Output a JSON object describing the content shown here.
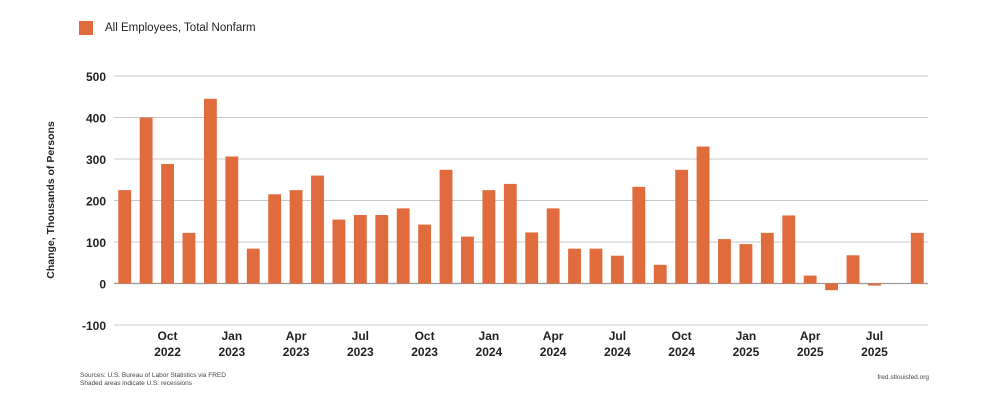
{
  "legend": {
    "label": "All Employees, Total Nonfarm",
    "color": "#e06b3c"
  },
  "footer": {
    "sources": "Sources: U.S. Bureau of Labor Statistics via FRED",
    "recessions": "Shaded areas indicate U.S. recessions",
    "site": "fred.stlouisfed.org"
  },
  "chart_data": {
    "type": "bar",
    "ylabel": "Change, Thousands of Persons",
    "ylim": [
      -100,
      500
    ],
    "yticks": [
      -100,
      0,
      100,
      200,
      300,
      400,
      500
    ],
    "grid": true,
    "legend_position": "top-left",
    "bar_color": "#e06b3c",
    "series": [
      {
        "name": "All Employees, Total Nonfarm",
        "x": [
          "2022-08",
          "2022-09",
          "2022-10",
          "2022-11",
          "2022-12",
          "2023-01",
          "2023-02",
          "2023-03",
          "2023-04",
          "2023-05",
          "2023-06",
          "2023-07",
          "2023-08",
          "2023-09",
          "2023-10",
          "2023-11",
          "2023-12",
          "2024-01",
          "2024-02",
          "2024-03",
          "2024-04",
          "2024-05",
          "2024-06",
          "2024-07",
          "2024-08",
          "2024-09",
          "2024-10",
          "2024-11",
          "2024-12",
          "2025-01",
          "2025-02",
          "2025-03",
          "2025-04",
          "2025-05",
          "2025-06",
          "2025-07",
          "2025-08",
          "2025-09"
        ],
        "values": [
          225,
          400,
          288,
          122,
          445,
          306,
          84,
          215,
          225,
          260,
          154,
          165,
          165,
          181,
          142,
          274,
          113,
          225,
          240,
          123,
          181,
          84,
          84,
          67,
          233,
          45,
          274,
          330,
          107,
          95,
          122,
          164,
          19,
          -16,
          68,
          -5,
          0,
          122
        ]
      }
    ],
    "xticks": [
      {
        "month": "Oct",
        "year": "2022",
        "index": 2
      },
      {
        "month": "Jan",
        "year": "2023",
        "index": 5
      },
      {
        "month": "Apr",
        "year": "2023",
        "index": 8
      },
      {
        "month": "Jul",
        "year": "2023",
        "index": 11
      },
      {
        "month": "Oct",
        "year": "2023",
        "index": 14
      },
      {
        "month": "Jan",
        "year": "2024",
        "index": 17
      },
      {
        "month": "Apr",
        "year": "2024",
        "index": 20
      },
      {
        "month": "Jul",
        "year": "2024",
        "index": 23
      },
      {
        "month": "Oct",
        "year": "2024",
        "index": 26
      },
      {
        "month": "Jan",
        "year": "2025",
        "index": 29
      },
      {
        "month": "Apr",
        "year": "2025",
        "index": 32
      },
      {
        "month": "Jul",
        "year": "2025",
        "index": 35
      }
    ]
  }
}
